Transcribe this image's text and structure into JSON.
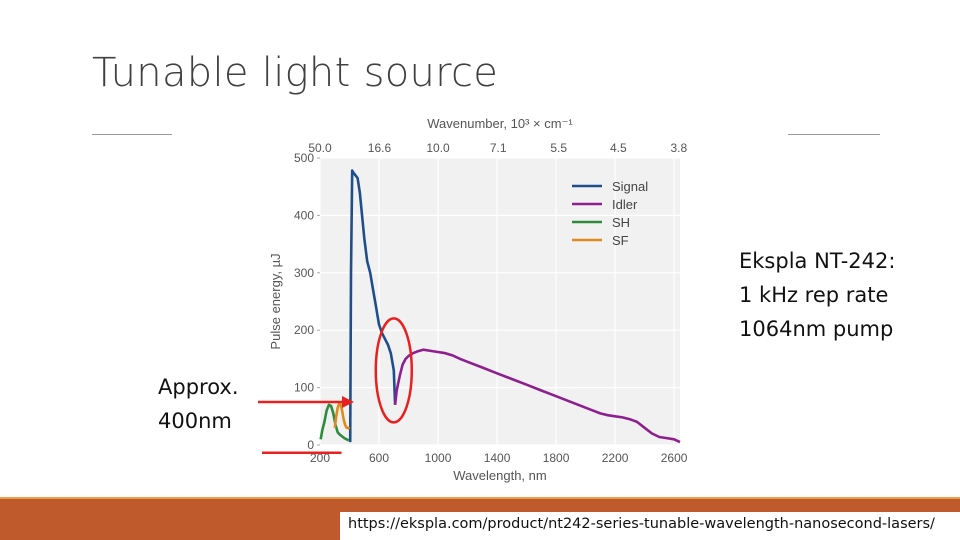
{
  "slide": {
    "title": "Tunable light source",
    "ekspla_lines": [
      "Ekspla NT-242:",
      "1 kHz rep rate",
      "1064nm pump"
    ],
    "approx_lines": [
      "Approx.",
      "400nm"
    ],
    "source_url": "https://ekspla.com/product/nt242-series-tunable-wavelength-nanosecond-lasers/",
    "accent_color": "#bf5a2c",
    "annotation_color": "#e82020"
  },
  "chart_data": {
    "type": "line",
    "xlabel": "Wavelength, nm",
    "ylabel": "Pulse energy, µJ",
    "top_axis_label": "Wavenumber, 10³ × cm⁻¹",
    "xlim": [
      200,
      2640
    ],
    "ylim": [
      0,
      500
    ],
    "x_ticks": [
      200,
      600,
      1000,
      1400,
      1800,
      2200,
      2600
    ],
    "y_ticks": [
      0,
      100,
      200,
      300,
      400,
      500
    ],
    "top_ticks": [
      {
        "label": "50.0",
        "at_nm": 200
      },
      {
        "label": "16.6",
        "at_nm": 603
      },
      {
        "label": "10.0",
        "at_nm": 1000
      },
      {
        "label": "7.1",
        "at_nm": 1408
      },
      {
        "label": "5.5",
        "at_nm": 1818
      },
      {
        "label": "4.5",
        "at_nm": 2222
      },
      {
        "label": "3.8",
        "at_nm": 2632
      }
    ],
    "legend": "top-right",
    "grid": true,
    "series": [
      {
        "name": "Signal",
        "color": "#1f4e8c",
        "x": [
          405,
          410,
          418,
          425,
          440,
          455,
          470,
          500,
          520,
          540,
          560,
          580,
          600,
          620,
          640,
          660,
          680,
          700,
          709
        ],
        "y": [
          5,
          300,
          478,
          475,
          470,
          465,
          440,
          360,
          320,
          300,
          270,
          240,
          210,
          195,
          185,
          175,
          160,
          130,
          70
        ]
      },
      {
        "name": "Idler",
        "color": "#8e1f8e",
        "x": [
          709,
          720,
          740,
          760,
          780,
          800,
          830,
          860,
          900,
          950,
          1000,
          1050,
          1100,
          1150,
          1200,
          1300,
          1400,
          1500,
          1600,
          1700,
          1800,
          1900,
          2000,
          2050,
          2100,
          2150,
          2200,
          2250,
          2300,
          2350,
          2400,
          2450,
          2500,
          2550,
          2600,
          2640
        ],
        "y": [
          70,
          95,
          120,
          140,
          150,
          155,
          160,
          163,
          166,
          164,
          162,
          160,
          156,
          150,
          145,
          135,
          125,
          115,
          105,
          95,
          85,
          75,
          65,
          60,
          55,
          52,
          50,
          48,
          45,
          40,
          30,
          20,
          14,
          12,
          10,
          5
        ]
      },
      {
        "name": "SH",
        "color": "#2e8b3e",
        "x": [
          205,
          215,
          230,
          245,
          260,
          275,
          290,
          305,
          320,
          335,
          350,
          365,
          380,
          395
        ],
        "y": [
          10,
          25,
          40,
          60,
          70,
          68,
          55,
          35,
          22,
          18,
          15,
          12,
          10,
          8
        ]
      },
      {
        "name": "SF",
        "color": "#e08a1e",
        "x": [
          300,
          310,
          320,
          330,
          340,
          350,
          360,
          370,
          380,
          390,
          400
        ],
        "y": [
          30,
          50,
          65,
          72,
          70,
          60,
          45,
          35,
          30,
          30,
          28
        ]
      }
    ]
  }
}
